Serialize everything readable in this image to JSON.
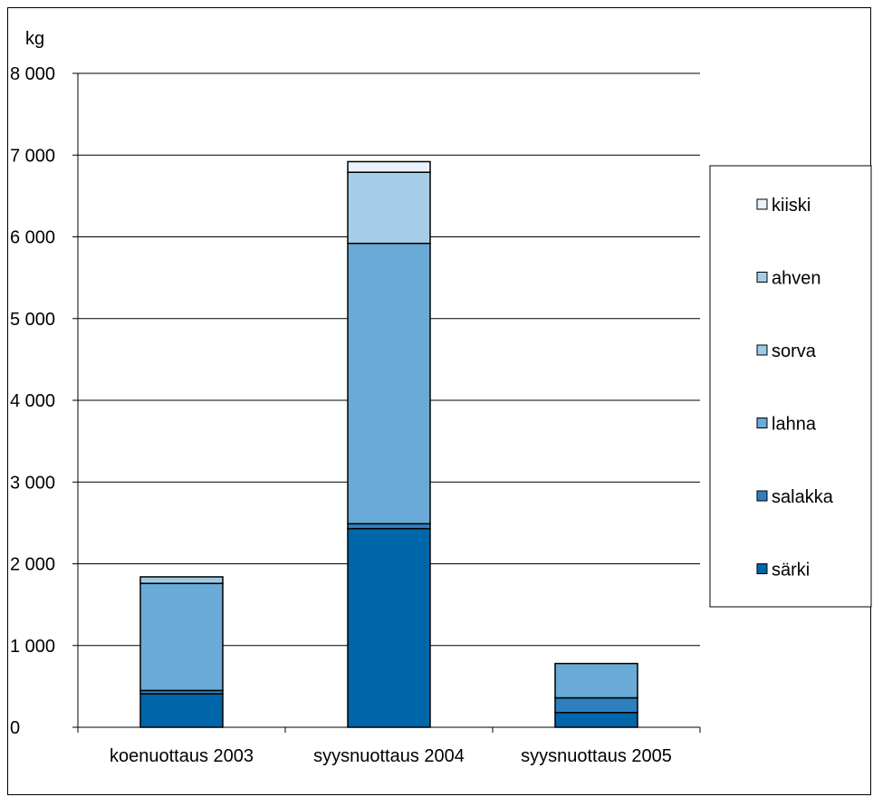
{
  "chart_data": {
    "type": "bar",
    "stacked": true,
    "ylabel": "kg",
    "ylim": [
      0,
      8000
    ],
    "y_ticks": [
      0,
      1000,
      2000,
      3000,
      4000,
      5000,
      6000,
      7000,
      8000
    ],
    "y_tick_labels": [
      "0",
      "1 000",
      "2 000",
      "3 000",
      "4 000",
      "5 000",
      "6 000",
      "7 000",
      "8 000"
    ],
    "categories": [
      "koenuottaus 2003",
      "syysnuottaus 2004",
      "syysnuottaus 2005"
    ],
    "series": [
      {
        "name": "särki",
        "color": "#0066aa",
        "values": [
          410,
          2430,
          180
        ]
      },
      {
        "name": "salakka",
        "color": "#2f7fbf",
        "values": [
          40,
          60,
          180
        ]
      },
      {
        "name": "lahna",
        "color": "#6aaad6",
        "values": [
          1310,
          3430,
          420
        ]
      },
      {
        "name": "sorva",
        "color": "#9ecae6",
        "values": [
          80,
          0,
          0
        ]
      },
      {
        "name": "ahven",
        "color": "#a6cde8",
        "values": [
          0,
          870,
          0
        ]
      },
      {
        "name": "kiiski",
        "color": "#eaf2fa",
        "values": [
          0,
          130,
          0
        ]
      }
    ],
    "legend_order": [
      "kiiski",
      "ahven",
      "sorva",
      "lahna",
      "salakka",
      "särki"
    ],
    "legend_position": "right",
    "grid": true
  }
}
